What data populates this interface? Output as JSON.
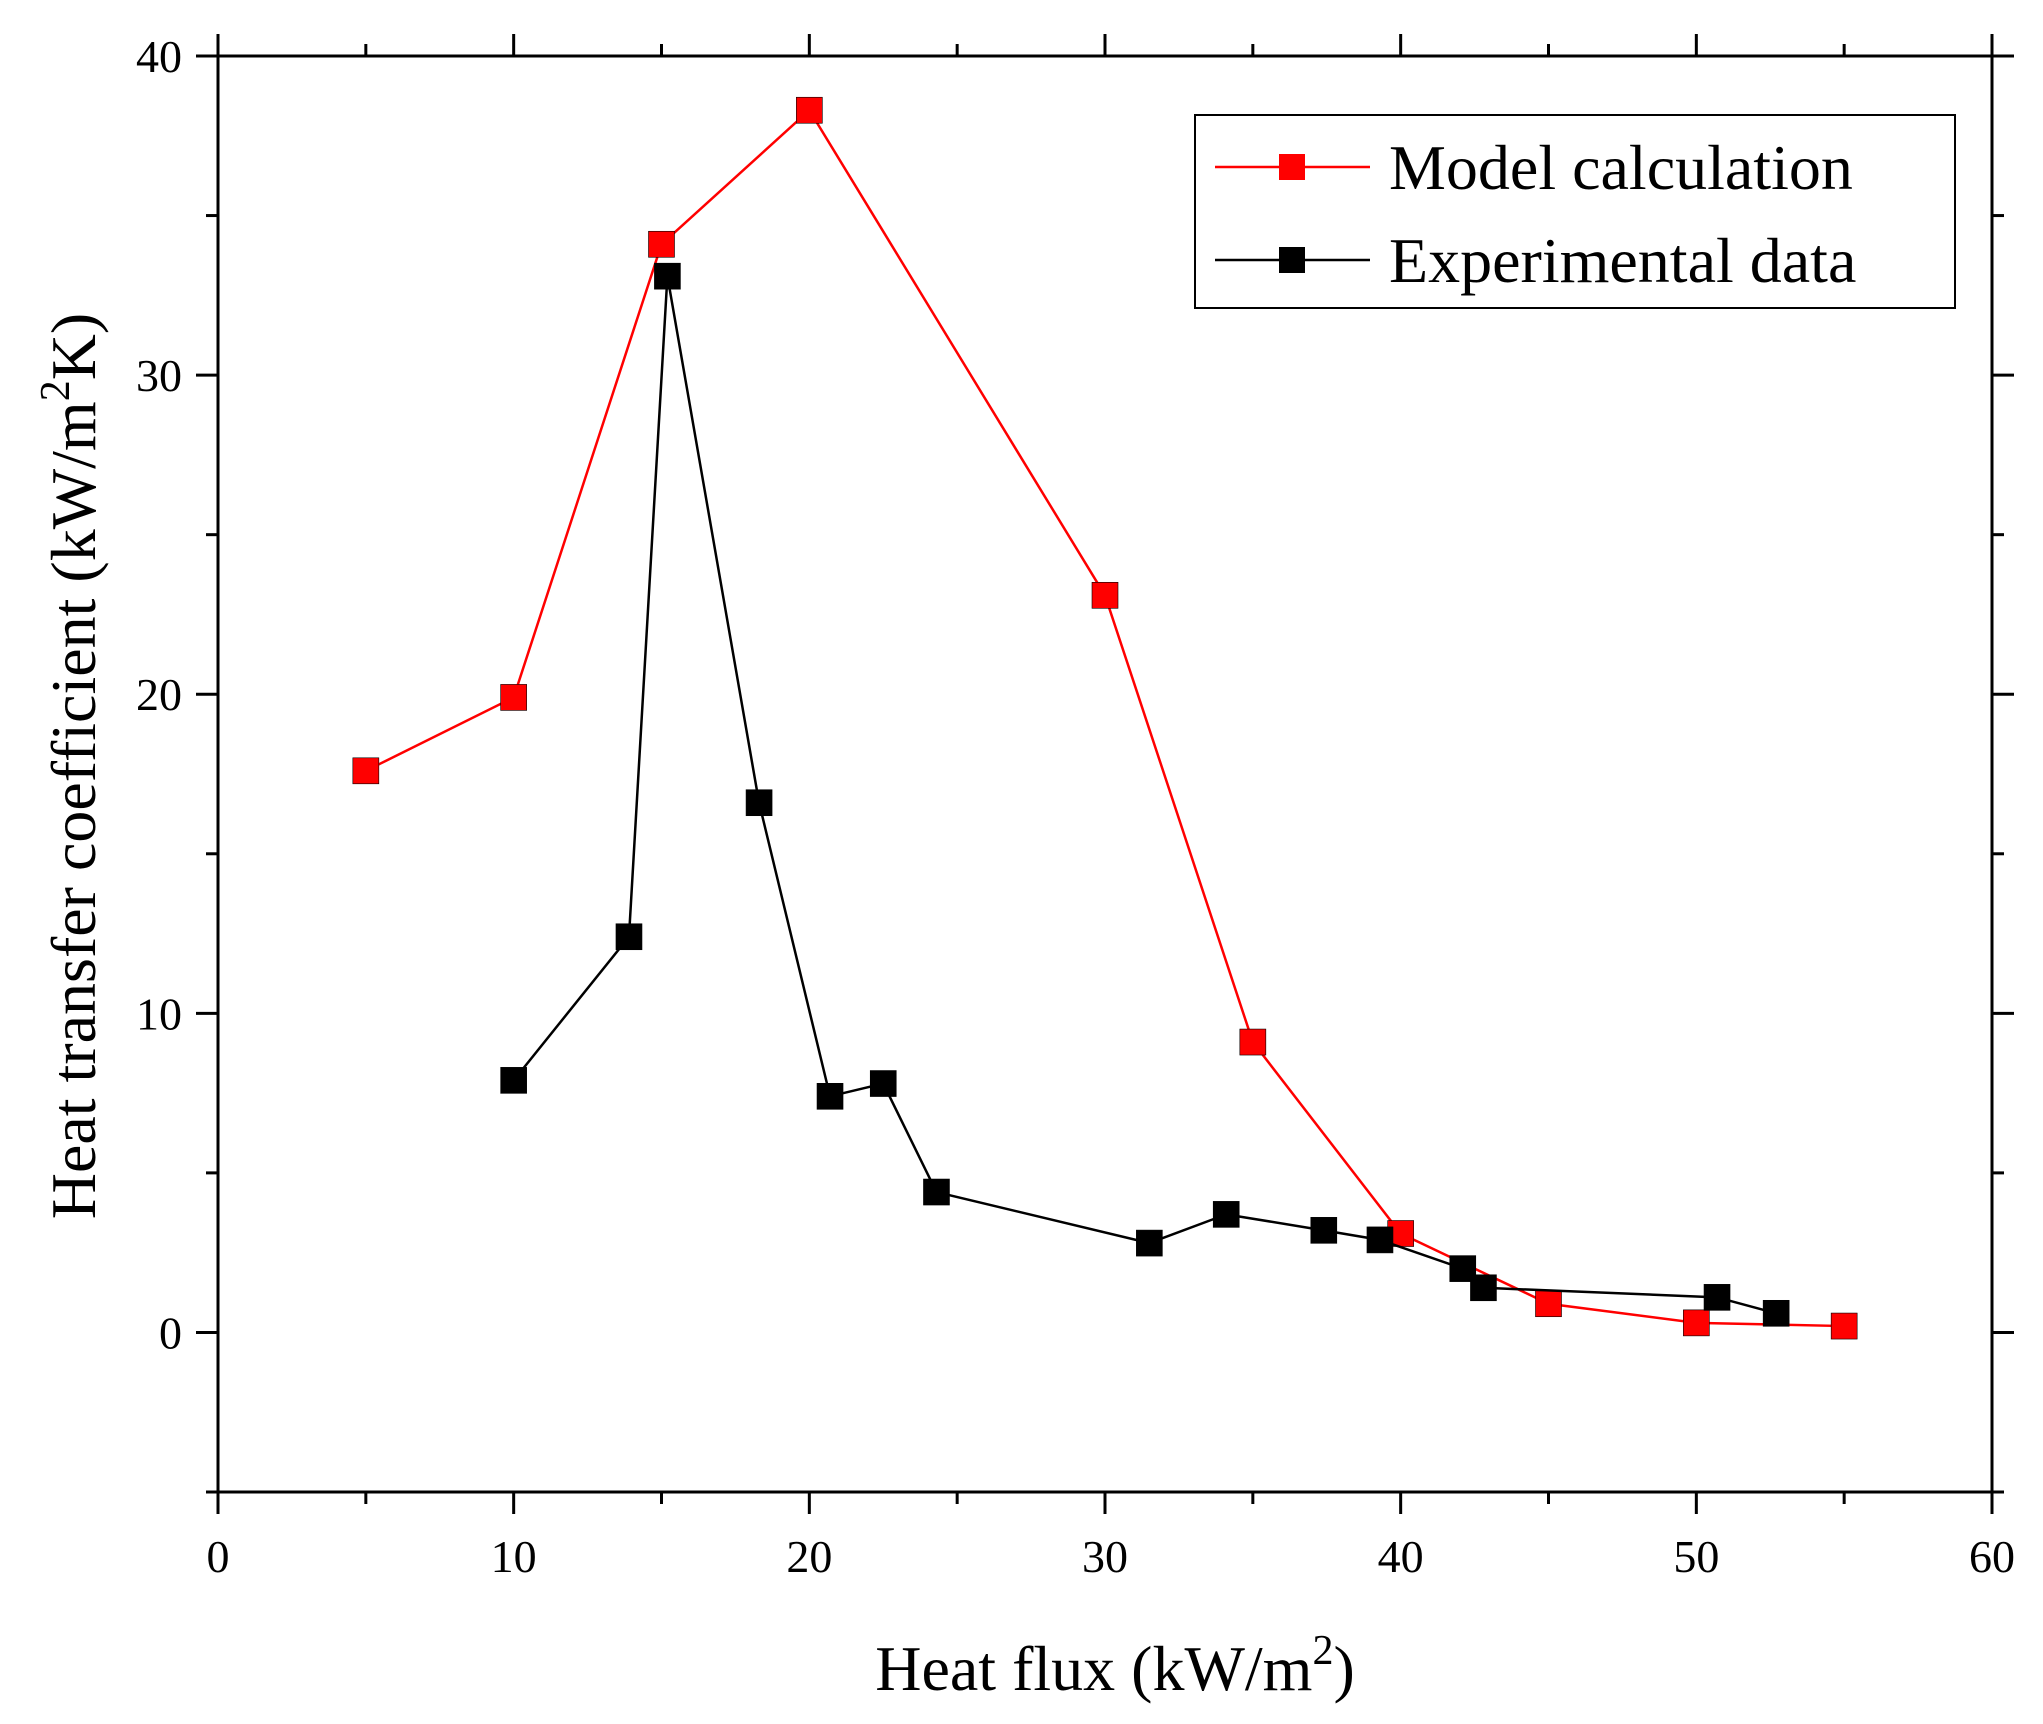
{
  "chart_data": {
    "type": "line",
    "title": "",
    "xlabel": {
      "main": "Heat flux (kW/m",
      "sup": "2",
      "end": ")"
    },
    "ylabel": {
      "main": "Heat transfer coefficient (kW/m",
      "sup": "2",
      "end": "K)"
    },
    "xlim": [
      0,
      60
    ],
    "ylim": [
      -5,
      40
    ],
    "xticks": [
      0,
      10,
      20,
      30,
      40,
      50,
      60
    ],
    "yticks": [
      0,
      10,
      20,
      30,
      40
    ],
    "xticks_minor": [
      5,
      15,
      25,
      35,
      45,
      55
    ],
    "yticks_minor": [
      -5,
      5,
      15,
      25,
      35
    ],
    "grid": false,
    "legend_position": "top-right",
    "series": [
      {
        "name": "Model calculation",
        "color": "#ff0000",
        "marker": "square",
        "x": [
          5,
          10,
          15,
          20,
          30,
          35,
          40,
          45,
          50,
          55
        ],
        "y": [
          17.6,
          19.9,
          34.1,
          38.3,
          23.1,
          9.1,
          3.1,
          0.9,
          0.3,
          0.2
        ]
      },
      {
        "name": "Experimental data",
        "color": "#000000",
        "marker": "square",
        "x": [
          10,
          13.9,
          15.2,
          18.3,
          20.7,
          22.5,
          24.3,
          31.5,
          34.1,
          37.4,
          39.3,
          42.1,
          42.8,
          50.7,
          52.7
        ],
        "y": [
          7.9,
          12.4,
          33.1,
          16.6,
          7.4,
          7.8,
          4.4,
          2.8,
          3.7,
          3.2,
          2.9,
          2.0,
          1.4,
          1.1,
          0.6
        ]
      }
    ]
  }
}
